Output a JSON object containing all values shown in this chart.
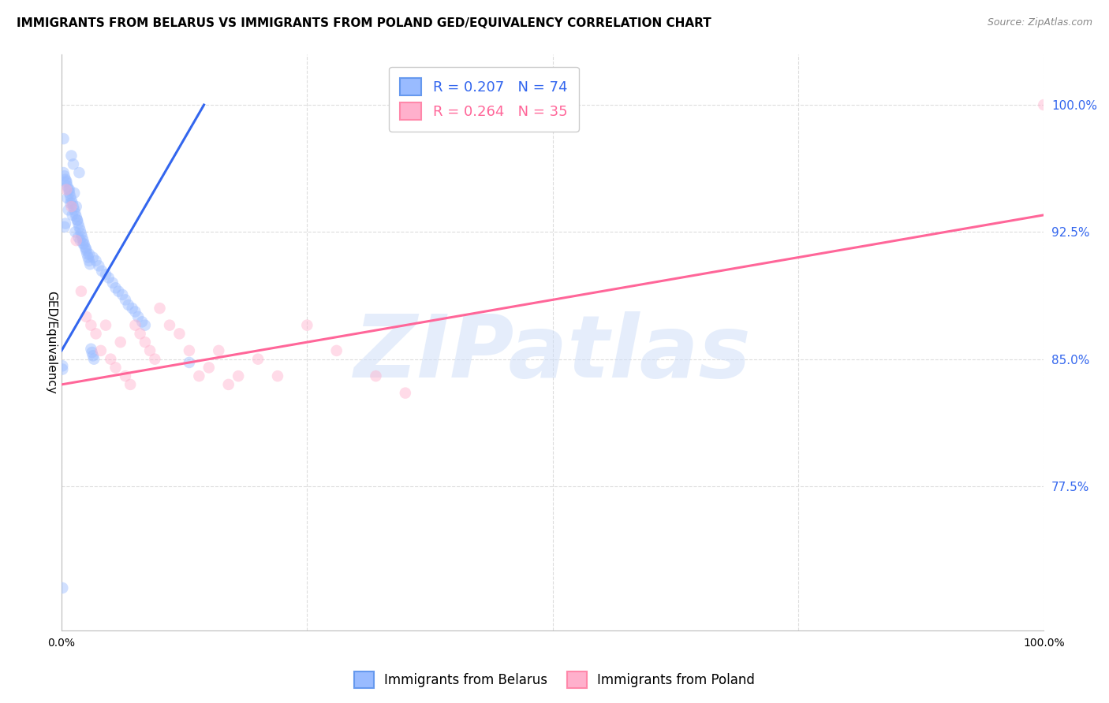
{
  "title": "IMMIGRANTS FROM BELARUS VS IMMIGRANTS FROM POLAND GED/EQUIVALENCY CORRELATION CHART",
  "source": "Source: ZipAtlas.com",
  "ylabel": "GED/Equivalency",
  "ytick_labels": [
    "77.5%",
    "85.0%",
    "92.5%",
    "100.0%"
  ],
  "ytick_values": [
    0.775,
    0.85,
    0.925,
    1.0
  ],
  "xlim": [
    0.0,
    1.0
  ],
  "ylim": [
    0.69,
    1.03
  ],
  "watermark": "ZIPatlas",
  "title_fontsize": 11,
  "source_fontsize": 9,
  "axis_label_fontsize": 10,
  "tick_fontsize": 10,
  "legend_fontsize": 13,
  "blue_scatter_color": "#99BBFF",
  "pink_scatter_color": "#FFB0CC",
  "blue_line_color": "#3366EE",
  "pink_line_color": "#FF6699",
  "right_tick_color": "#3366EE",
  "belarus_x": [
    0.002,
    0.01,
    0.012,
    0.018,
    0.005,
    0.008,
    0.013,
    0.006,
    0.009,
    0.015,
    0.007,
    0.011,
    0.016,
    0.004,
    0.003,
    0.014,
    0.017,
    0.019,
    0.022,
    0.025,
    0.028,
    0.032,
    0.035,
    0.038,
    0.041,
    0.045,
    0.048,
    0.052,
    0.055,
    0.058,
    0.062,
    0.065,
    0.068,
    0.072,
    0.075,
    0.078,
    0.082,
    0.085,
    0.002,
    0.003,
    0.004,
    0.005,
    0.006,
    0.007,
    0.008,
    0.009,
    0.01,
    0.011,
    0.012,
    0.013,
    0.014,
    0.015,
    0.016,
    0.017,
    0.018,
    0.019,
    0.02,
    0.021,
    0.022,
    0.023,
    0.024,
    0.025,
    0.026,
    0.027,
    0.028,
    0.029,
    0.03,
    0.031,
    0.032,
    0.033,
    0.13,
    0.001,
    0.001,
    0.001
  ],
  "belarus_y": [
    0.98,
    0.97,
    0.965,
    0.96,
    0.955,
    0.95,
    0.948,
    0.945,
    0.942,
    0.94,
    0.938,
    0.935,
    0.932,
    0.93,
    0.928,
    0.925,
    0.922,
    0.92,
    0.918,
    0.915,
    0.912,
    0.91,
    0.908,
    0.905,
    0.902,
    0.9,
    0.898,
    0.895,
    0.892,
    0.89,
    0.888,
    0.885,
    0.882,
    0.88,
    0.878,
    0.875,
    0.872,
    0.87,
    0.96,
    0.958,
    0.956,
    0.954,
    0.952,
    0.95,
    0.948,
    0.946,
    0.944,
    0.942,
    0.94,
    0.938,
    0.936,
    0.934,
    0.932,
    0.93,
    0.928,
    0.926,
    0.924,
    0.922,
    0.92,
    0.918,
    0.916,
    0.914,
    0.912,
    0.91,
    0.908,
    0.906,
    0.856,
    0.854,
    0.852,
    0.85,
    0.848,
    0.846,
    0.844,
    0.715
  ],
  "poland_x": [
    0.005,
    0.01,
    0.015,
    0.02,
    0.025,
    0.03,
    0.035,
    0.04,
    0.045,
    0.05,
    0.055,
    0.06,
    0.065,
    0.07,
    0.075,
    0.08,
    0.085,
    0.09,
    0.095,
    0.1,
    0.11,
    0.12,
    0.13,
    0.14,
    0.15,
    0.16,
    0.17,
    0.18,
    0.2,
    0.22,
    0.25,
    0.28,
    0.32,
    0.35,
    1.0
  ],
  "poland_y": [
    0.95,
    0.94,
    0.92,
    0.89,
    0.875,
    0.87,
    0.865,
    0.855,
    0.87,
    0.85,
    0.845,
    0.86,
    0.84,
    0.835,
    0.87,
    0.865,
    0.86,
    0.855,
    0.85,
    0.88,
    0.87,
    0.865,
    0.855,
    0.84,
    0.845,
    0.855,
    0.835,
    0.84,
    0.85,
    0.84,
    0.87,
    0.855,
    0.84,
    0.83,
    1.0
  ],
  "blue_trend_x": [
    0.0,
    0.145
  ],
  "blue_trend_y": [
    0.855,
    1.0
  ],
  "pink_trend_x": [
    0.0,
    1.0
  ],
  "pink_trend_y": [
    0.835,
    0.935
  ],
  "grid_color": "#DDDDDD",
  "background_color": "#FFFFFF",
  "scatter_size": 110,
  "scatter_alpha": 0.45
}
